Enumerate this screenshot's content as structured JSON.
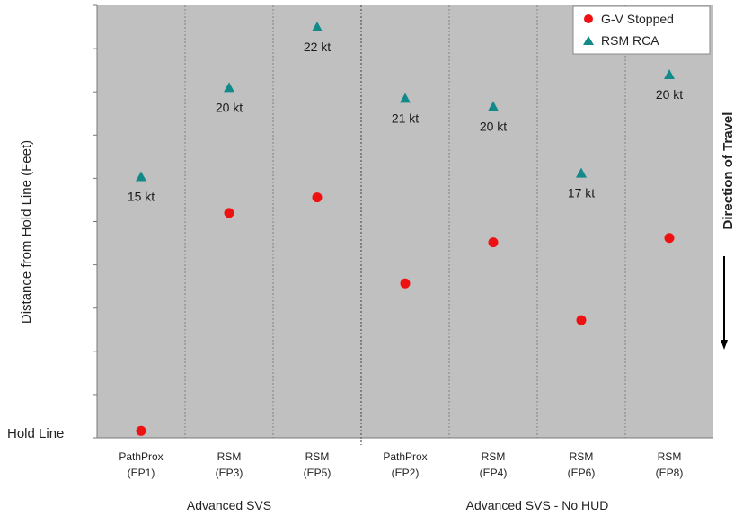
{
  "chart_data": {
    "type": "scatter",
    "title": "",
    "ylabel": "Distance from Hold Line (Feet)",
    "hold_line_label": "Hold Line",
    "direction_label": "Direction of Travel",
    "grid": true,
    "legend_position": "top-right",
    "y_ticks_labeled": false,
    "categories": [
      {
        "line1": "PathProx",
        "line2": "(EP1)"
      },
      {
        "line1": "RSM",
        "line2": "(EP3)"
      },
      {
        "line1": "RSM",
        "line2": "(EP5)"
      },
      {
        "line1": "PathProx",
        "line2": "(EP2)"
      },
      {
        "line1": "RSM",
        "line2": "(EP4)"
      },
      {
        "line1": "RSM",
        "line2": "(EP6)"
      },
      {
        "line1": "RSM",
        "line2": "(EP8)"
      }
    ],
    "groups": [
      {
        "label": "Advanced SVS",
        "start": 0,
        "end": 2
      },
      {
        "label": "Advanced SVS - No HUD",
        "start": 3,
        "end": 6
      }
    ],
    "series": [
      {
        "name": "G-V Stopped",
        "marker": "circle",
        "color": "#ee1111",
        "values": [
          0.016,
          0.52,
          0.556,
          0.357,
          0.452,
          0.272,
          0.462
        ]
      },
      {
        "name": "RSM RCA",
        "marker": "triangle",
        "color": "#138a8a",
        "values": [
          0.604,
          0.81,
          0.95,
          0.785,
          0.766,
          0.612,
          0.84
        ],
        "labels": [
          "15 kt",
          "20 kt",
          "22 kt",
          "21 kt",
          "20 kt",
          "17 kt",
          "20 kt"
        ]
      }
    ],
    "ylim": [
      0,
      1
    ]
  },
  "colors": {
    "plot_background": "#c0c0c0",
    "grid": "#8a8a8a",
    "legend_background": "#ffffff"
  }
}
